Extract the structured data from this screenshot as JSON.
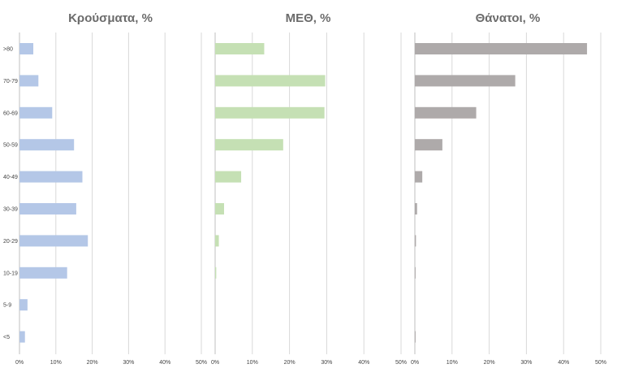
{
  "chart_data": [
    {
      "type": "bar",
      "orientation": "horizontal",
      "title": "Κρούσματα, %",
      "categories": [
        ">80",
        "70-79",
        "60-69",
        "50-59",
        "40-49",
        "30-39",
        "20-29",
        "10-19",
        "5-9",
        "<5"
      ],
      "values": [
        3.8,
        5.2,
        9.0,
        15.0,
        17.3,
        15.6,
        18.8,
        13.1,
        2.2,
        1.5
      ],
      "xlim": [
        0,
        50
      ],
      "x_ticks": [
        "0%",
        "10%",
        "20%",
        "30%",
        "40%",
        "50%"
      ],
      "grid": true,
      "color": "#b4c7e7"
    },
    {
      "type": "bar",
      "orientation": "horizontal",
      "title": "ΜΕΘ, %",
      "categories": [
        ">80",
        "70-79",
        "60-69",
        "50-59",
        "40-49",
        "30-39",
        "20-29",
        "10-19",
        "5-9",
        "<5"
      ],
      "values": [
        13.2,
        29.6,
        29.4,
        18.3,
        7.0,
        2.4,
        1.0,
        0.3,
        0,
        0
      ],
      "xlim": [
        0,
        50
      ],
      "x_ticks": [
        "0%",
        "10%",
        "20%",
        "30%",
        "40%",
        "50%"
      ],
      "grid": true,
      "color": "#c5e0b4"
    },
    {
      "type": "bar",
      "orientation": "horizontal",
      "title": "Θάνατοι, %",
      "categories": [
        ">80",
        "70-79",
        "60-69",
        "50-59",
        "40-49",
        "30-39",
        "20-29",
        "10-19",
        "5-9",
        "<5"
      ],
      "values": [
        46.3,
        27.0,
        16.5,
        7.4,
        2.0,
        0.6,
        0.3,
        0.2,
        0,
        0.2
      ],
      "xlim": [
        0,
        50
      ],
      "x_ticks": [
        "0%",
        "10%",
        "20%",
        "30%",
        "40%",
        "50%"
      ],
      "grid": true,
      "color": "#aeaaaa"
    }
  ]
}
